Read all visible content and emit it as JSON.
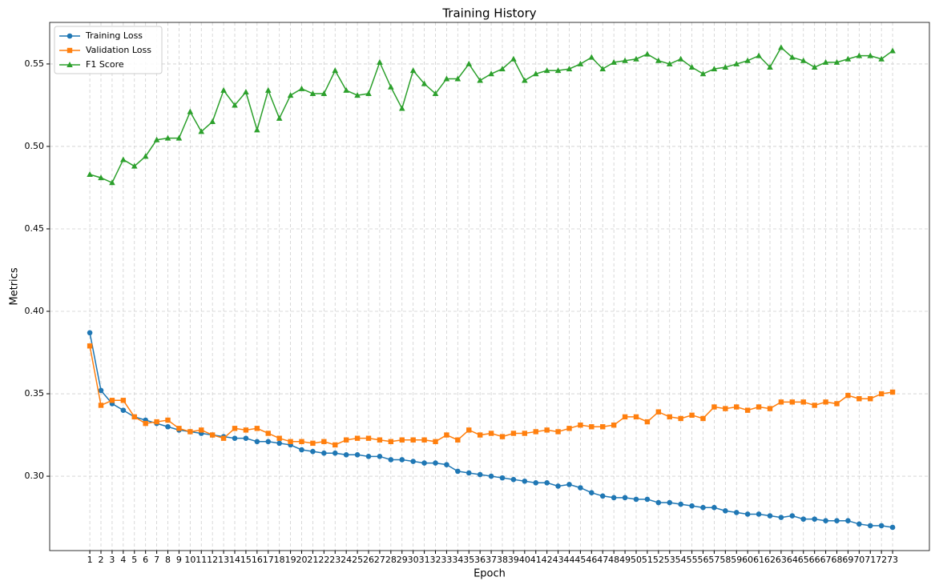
{
  "chart_data": {
    "type": "line",
    "title": "Training History",
    "xlabel": "Epoch",
    "ylabel": "Metrics",
    "x": [
      1,
      2,
      3,
      4,
      5,
      6,
      7,
      8,
      9,
      10,
      11,
      12,
      13,
      14,
      15,
      16,
      17,
      18,
      19,
      20,
      21,
      22,
      23,
      24,
      25,
      26,
      27,
      28,
      29,
      30,
      31,
      32,
      33,
      34,
      35,
      36,
      37,
      38,
      39,
      40,
      41,
      42,
      43,
      44,
      45,
      46,
      47,
      48,
      49,
      50,
      51,
      52,
      53,
      54,
      55,
      56,
      57,
      58,
      59,
      60,
      61,
      62,
      63,
      64,
      65,
      66,
      67,
      68,
      69,
      70,
      71,
      72,
      73
    ],
    "series": [
      {
        "name": "Training Loss",
        "color": "#1f77b4",
        "marker": "o",
        "values": [
          0.387,
          0.352,
          0.344,
          0.34,
          0.336,
          0.334,
          0.332,
          0.33,
          0.328,
          0.327,
          0.326,
          0.325,
          0.324,
          0.323,
          0.323,
          0.321,
          0.321,
          0.32,
          0.319,
          0.316,
          0.315,
          0.314,
          0.314,
          0.313,
          0.313,
          0.312,
          0.312,
          0.31,
          0.31,
          0.309,
          0.308,
          0.308,
          0.307,
          0.303,
          0.302,
          0.301,
          0.3,
          0.299,
          0.298,
          0.297,
          0.296,
          0.296,
          0.294,
          0.295,
          0.293,
          0.29,
          0.288,
          0.287,
          0.287,
          0.286,
          0.286,
          0.284,
          0.284,
          0.283,
          0.282,
          0.281,
          0.281,
          0.279,
          0.278,
          0.277,
          0.277,
          0.276,
          0.275,
          0.276,
          0.274,
          0.274,
          0.273,
          0.273,
          0.273,
          0.271,
          0.27,
          0.27,
          0.269
        ]
      },
      {
        "name": "Validation Loss",
        "color": "#ff7f0e",
        "marker": "s",
        "values": [
          0.379,
          0.343,
          0.346,
          0.346,
          0.336,
          0.332,
          0.333,
          0.334,
          0.329,
          0.327,
          0.328,
          0.325,
          0.323,
          0.329,
          0.328,
          0.329,
          0.326,
          0.323,
          0.321,
          0.321,
          0.32,
          0.321,
          0.319,
          0.322,
          0.323,
          0.323,
          0.322,
          0.321,
          0.322,
          0.322,
          0.322,
          0.321,
          0.325,
          0.322,
          0.328,
          0.325,
          0.326,
          0.324,
          0.326,
          0.326,
          0.327,
          0.328,
          0.327,
          0.329,
          0.331,
          0.33,
          0.33,
          0.331,
          0.336,
          0.336,
          0.333,
          0.339,
          0.336,
          0.335,
          0.337,
          0.335,
          0.342,
          0.341,
          0.342,
          0.34,
          0.342,
          0.341,
          0.345,
          0.345,
          0.345,
          0.343,
          0.345,
          0.344,
          0.349,
          0.347,
          0.347,
          0.35,
          0.351
        ]
      },
      {
        "name": "F1 Score",
        "color": "#2ca02c",
        "marker": "^",
        "values": [
          0.483,
          0.481,
          0.478,
          0.492,
          0.488,
          0.494,
          0.504,
          0.505,
          0.505,
          0.521,
          0.509,
          0.515,
          0.534,
          0.525,
          0.533,
          0.51,
          0.534,
          0.517,
          0.531,
          0.535,
          0.532,
          0.532,
          0.546,
          0.534,
          0.531,
          0.532,
          0.551,
          0.536,
          0.523,
          0.546,
          0.538,
          0.532,
          0.541,
          0.541,
          0.55,
          0.54,
          0.544,
          0.547,
          0.553,
          0.54,
          0.544,
          0.546,
          0.546,
          0.547,
          0.55,
          0.554,
          0.547,
          0.551,
          0.552,
          0.553,
          0.556,
          0.552,
          0.55,
          0.553,
          0.548,
          0.544,
          0.547,
          0.548,
          0.55,
          0.552,
          0.555,
          0.548,
          0.56,
          0.554,
          0.552,
          0.548,
          0.551,
          0.551,
          0.553,
          0.555,
          0.555,
          0.553,
          0.558
        ]
      }
    ],
    "xlim": [
      -2.6,
      76.3
    ],
    "ylim": [
      0.2549,
      0.5752
    ],
    "xticks": [
      1,
      2,
      3,
      4,
      5,
      6,
      7,
      8,
      9,
      10,
      11,
      12,
      13,
      14,
      15,
      16,
      17,
      18,
      19,
      20,
      21,
      22,
      23,
      24,
      25,
      26,
      27,
      28,
      29,
      30,
      31,
      32,
      33,
      34,
      35,
      36,
      37,
      38,
      39,
      40,
      41,
      42,
      43,
      44,
      45,
      46,
      47,
      48,
      49,
      50,
      51,
      52,
      53,
      54,
      55,
      56,
      57,
      58,
      59,
      60,
      61,
      62,
      63,
      64,
      65,
      66,
      67,
      68,
      69,
      70,
      71,
      72,
      73
    ],
    "yticks": [
      {
        "value": 0.3,
        "label": "0.30"
      },
      {
        "value": 0.35,
        "label": "0.35"
      },
      {
        "value": 0.4,
        "label": "0.40"
      },
      {
        "value": 0.45,
        "label": "0.45"
      },
      {
        "value": 0.5,
        "label": "0.50"
      },
      {
        "value": 0.55,
        "label": "0.55"
      }
    ],
    "grid": true,
    "legend": "upper left"
  }
}
